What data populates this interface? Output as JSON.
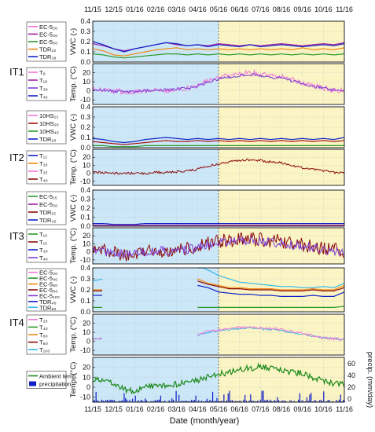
{
  "chart_data": {
    "type": "line",
    "x_ticks": [
      "11/15",
      "12/15",
      "01/16",
      "02/16",
      "03/16",
      "04/16",
      "05/16",
      "06/16",
      "07/16",
      "08/16",
      "09/16",
      "10/16",
      "11/16"
    ],
    "xlabel": "Date (month/year)",
    "shade": {
      "winter_color": "#cce7f7",
      "summer_color": "#fbf4c4",
      "boundary": "05/16"
    },
    "panels": [
      {
        "group": "",
        "ylabel": "VWC (-)",
        "yticks": [
          "0.4",
          "0.3",
          "0.2",
          "0.1",
          "0.0"
        ],
        "ylim": [
          0,
          0.4
        ],
        "legend": [
          {
            "label": "EC-5₂₀",
            "color": "#f078d8"
          },
          {
            "label": "EC-5₃₀",
            "color": "#a020a0"
          },
          {
            "label": "EC-5₅₀",
            "color": "#2a9a2a"
          },
          {
            "label": "TDR₂₂",
            "color": "#f08a10"
          },
          {
            "label": "TDR₃₈",
            "color": "#1020c8"
          }
        ],
        "series": [
          {
            "color": "#f08a10",
            "values": [
              0.13,
              0.11,
              0.07,
              0.06,
              0.08,
              0.1,
              0.12,
              0.13,
              0.14,
              0.12,
              0.13,
              0.12,
              0.13,
              0.12,
              0.13,
              0.12,
              0.13,
              0.12,
              0.13,
              0.12,
              0.14,
              0.12,
              0.13,
              0.12,
              0.14
            ]
          },
          {
            "color": "#2a9a2a",
            "values": [
              0.08,
              0.07,
              0.05,
              0.04,
              0.05,
              0.06,
              0.07,
              0.08,
              0.08,
              0.07,
              0.08,
              0.07,
              0.08,
              0.07,
              0.08,
              0.07,
              0.08,
              0.07,
              0.08,
              0.07,
              0.08,
              0.07,
              0.08,
              0.07,
              0.08
            ]
          },
          {
            "color": "#a020a0",
            "values": [
              0.18,
              0.16,
              0.13,
              0.11,
              0.13,
              0.15,
              0.17,
              0.19,
              0.17,
              0.16,
              0.17,
              0.16,
              0.18,
              0.17,
              0.16,
              0.17,
              0.16,
              0.17,
              0.18,
              0.17,
              0.16,
              0.17,
              0.18,
              0.17,
              0.19
            ]
          },
          {
            "color": "#1020c8",
            "values": [
              0.2,
              0.17,
              0.13,
              0.1,
              0.13,
              0.15,
              0.17,
              0.19,
              0.18,
              0.16,
              0.17,
              0.15,
              0.17,
              0.16,
              0.15,
              0.17,
              0.15,
              0.16,
              0.17,
              0.16,
              0.15,
              0.16,
              0.17,
              0.16,
              0.18
            ]
          }
        ]
      },
      {
        "group": "IT1",
        "ylabel": "Temp. (°C)",
        "yticks": [
          "20",
          "10",
          "0",
          "-10"
        ],
        "ylim": [
          -15,
          30
        ],
        "legend": [
          {
            "label": "T₈",
            "color": "#f078d8"
          },
          {
            "label": "T₁₈",
            "color": "#a020a0"
          },
          {
            "label": "T₃₈",
            "color": "#7b3fd6"
          },
          {
            "label": "T₄₅",
            "color": "#1020c8"
          }
        ],
        "series": [
          {
            "color": "#f078d8",
            "values": [
              1,
              1,
              0,
              -1,
              -1,
              0,
              1,
              1,
              2,
              3,
              6,
              12,
              15,
              17,
              19,
              20,
              19,
              17,
              16,
              12,
              9,
              6,
              3,
              1,
              0
            ],
            "band": 6
          },
          {
            "color": "#7b3fd6",
            "values": [
              1,
              1,
              0,
              -1,
              -1,
              0,
              1,
              1,
              2,
              3,
              5,
              10,
              13,
              15,
              17,
              18,
              17,
              15,
              14,
              11,
              8,
              5,
              3,
              1,
              0
            ],
            "band": 3
          }
        ]
      },
      {
        "group": "",
        "ylabel": "VWC (-)",
        "yticks": [
          "0.4",
          "0.3",
          "0.2",
          "0.1",
          "0.0"
        ],
        "ylim": [
          0,
          0.4
        ],
        "legend": [
          {
            "label": "10HS₁₃",
            "color": "#f078d8"
          },
          {
            "label": "10HS₂₀",
            "color": "#a01010"
          },
          {
            "label": "10HS₄₅",
            "color": "#2a9a2a"
          },
          {
            "label": "TDR₂₀",
            "color": "#1020c8"
          }
        ],
        "series": [
          {
            "color": "#2a9a2a",
            "values": [
              0.02,
              0.02,
              0.01,
              0.01,
              0.01,
              0.02,
              0.02,
              0.02,
              0.02,
              0.02,
              0.02,
              0.02,
              0.02,
              0.02,
              0.02,
              0.02,
              0.02,
              0.02,
              0.02,
              0.02,
              0.02,
              0.02,
              0.02,
              0.02,
              0.02
            ]
          },
          {
            "color": "#a01010",
            "values": [
              0.06,
              0.05,
              0.04,
              0.03,
              0.04,
              0.05,
              0.06,
              0.07,
              0.06,
              0.06,
              0.07,
              0.06,
              0.07,
              0.06,
              0.07,
              0.06,
              0.07,
              0.06,
              0.07,
              0.06,
              0.07,
              0.06,
              0.07,
              0.06,
              0.07
            ]
          },
          {
            "color": "#1020c8",
            "values": [
              0.09,
              0.08,
              0.06,
              0.05,
              0.06,
              0.08,
              0.09,
              0.1,
              0.09,
              0.08,
              0.09,
              0.08,
              0.09,
              0.08,
              0.09,
              0.08,
              0.09,
              0.08,
              0.09,
              0.08,
              0.09,
              0.08,
              0.09,
              0.08,
              0.1
            ]
          }
        ]
      },
      {
        "group": "IT2",
        "ylabel": "Temp. (°C)",
        "yticks": [
          "20",
          "10",
          "0",
          "-10"
        ],
        "ylim": [
          -15,
          30
        ],
        "legend": [
          {
            "label": "T₁₂",
            "color": "#1020c8"
          },
          {
            "label": "T₂₀",
            "color": "#f08a10"
          },
          {
            "label": "T₂₅",
            "color": "#f078d8"
          },
          {
            "label": "T₄₀",
            "color": "#8b0a0a"
          }
        ],
        "series": [
          {
            "color": "#8b0a0a",
            "values": [
              1,
              1,
              0,
              0,
              0,
              0,
              1,
              1,
              2,
              3,
              5,
              9,
              12,
              14,
              16,
              17,
              16,
              14,
              13,
              10,
              7,
              5,
              3,
              1,
              1
            ],
            "band": 3
          }
        ]
      },
      {
        "group": "",
        "ylabel": "VWC (-)",
        "yticks": [
          "0.4",
          "0.3",
          "0.2",
          "0.1",
          "0.0"
        ],
        "ylim": [
          0,
          0.4
        ],
        "legend": [
          {
            "label": "EC-5₁₅",
            "color": "#2a9a2a"
          },
          {
            "label": "EC-5₃₀",
            "color": "#a020a0"
          },
          {
            "label": "TDR₁₅",
            "color": "#8b0a0a"
          },
          {
            "label": "TDR₃₀",
            "color": "#1020c8"
          }
        ],
        "series": [
          {
            "color": "#1020c8",
            "values": [
              0.03,
              0.03,
              0.02,
              0.02,
              0.02,
              0.03,
              0.03,
              0.03,
              0.03,
              0.03,
              0.03,
              0.03,
              0.03,
              0.03,
              0.03,
              0.03,
              0.03,
              0.03,
              0.03,
              0.03,
              0.03,
              0.03,
              0.03,
              0.03,
              0.03
            ]
          },
          {
            "color": "#a020a0",
            "values": [
              0.01,
              0.01,
              0.01,
              0.01,
              0.01,
              0.01,
              0.01,
              0.01,
              0.01,
              0.01,
              0.01,
              0.01,
              0.01,
              0.01,
              0.01,
              0.01,
              0.01,
              0.01,
              0.01,
              0.01,
              0.01,
              0.01,
              0.01,
              0.01,
              0.01
            ]
          }
        ]
      },
      {
        "group": "IT3",
        "ylabel": "Temp. (°C)",
        "yticks": [
          "20",
          "10",
          "0",
          "-10"
        ],
        "ylim": [
          -15,
          30
        ],
        "legend": [
          {
            "label": "T₁₀",
            "color": "#2a9a2a"
          },
          {
            "label": "T₁₅",
            "color": "#8b0a0a"
          },
          {
            "label": "T₃₀",
            "color": "#1020c8"
          },
          {
            "label": "T₄₀",
            "color": "#7b3fd6"
          }
        ],
        "series": [
          {
            "color": "#8b0a0a",
            "values": [
              3,
              2,
              0,
              -3,
              -2,
              0,
              1,
              2,
              2,
              3,
              6,
              10,
              13,
              14,
              15,
              16,
              15,
              14,
              13,
              11,
              9,
              6,
              4,
              2,
              1
            ],
            "band": 18
          },
          {
            "color": "#7b3fd6",
            "values": [
              2,
              1,
              0,
              -2,
              -2,
              0,
              1,
              1,
              2,
              3,
              5,
              9,
              11,
              12,
              13,
              14,
              13,
              12,
              11,
              9,
              8,
              5,
              3,
              1,
              0
            ],
            "band": 12
          }
        ]
      },
      {
        "group": "",
        "ylabel": "VWC (-)",
        "yticks": [
          "0.4",
          "0.3",
          "0.2",
          "0.1",
          "0.0"
        ],
        "ylim": [
          0,
          0.4
        ],
        "legend": [
          {
            "label": "EC-5₂₀",
            "color": "#f078d8"
          },
          {
            "label": "EC-5₄₀",
            "color": "#2a9a2a"
          },
          {
            "label": "EC-5₆₀",
            "color": "#f08a10"
          },
          {
            "label": "EC-5₈₀",
            "color": "#8b0a0a"
          },
          {
            "label": "EC-5₁₀₀",
            "color": "#7b3fd6"
          },
          {
            "label": "TDR₄₀",
            "color": "#1020c8"
          },
          {
            "label": "TDR₉₀",
            "color": "#35b8e8"
          }
        ],
        "series": [
          {
            "color": "#35b8e8",
            "values": [
              0.28,
              0.3,
              null,
              null,
              null,
              null,
              null,
              null,
              null,
              null,
              0.42,
              0.38,
              0.33,
              0.3,
              0.27,
              0.26,
              0.25,
              0.24,
              0.23,
              0.23,
              0.22,
              0.22,
              0.23,
              0.22,
              0.26
            ]
          },
          {
            "color": "#f08a10",
            "values": [
              0.2,
              0.2,
              null,
              null,
              null,
              null,
              null,
              null,
              null,
              null,
              0.3,
              0.26,
              0.24,
              0.22,
              0.22,
              0.21,
              0.21,
              0.21,
              0.2,
              0.2,
              0.2,
              0.21,
              0.2,
              0.2,
              0.24
            ]
          },
          {
            "color": "#8b0a0a",
            "values": [
              0.19,
              0.19,
              null,
              null,
              null,
              null,
              null,
              null,
              null,
              null,
              0.28,
              0.25,
              0.23,
              0.21,
              0.21,
              0.2,
              0.2,
              0.2,
              0.19,
              0.19,
              0.19,
              0.2,
              0.19,
              0.19,
              0.22
            ]
          },
          {
            "color": "#1020c8",
            "values": [
              0.15,
              0.15,
              null,
              null,
              null,
              null,
              null,
              null,
              null,
              null,
              0.24,
              0.22,
              0.18,
              0.17,
              0.16,
              0.16,
              0.15,
              0.15,
              0.14,
              0.14,
              0.14,
              0.15,
              0.14,
              0.14,
              0.18
            ]
          },
          {
            "color": "#2a9a2a",
            "values": [
              0.04,
              0.04,
              null,
              null,
              null,
              null,
              null,
              null,
              null,
              null,
              0.04,
              0.04,
              0.04,
              0.04,
              0.04,
              0.04,
              0.04,
              0.04,
              0.04,
              0.04,
              0.04,
              0.04,
              0.04,
              0.04,
              0.05
            ]
          }
        ]
      },
      {
        "group": "IT4",
        "ylabel": "Temp. (°C)",
        "yticks": [
          "20",
          "10",
          "0",
          "-10"
        ],
        "ylim": [
          -15,
          30
        ],
        "legend": [
          {
            "label": "T₂₀",
            "color": "#f078d8"
          },
          {
            "label": "T₄₀",
            "color": "#2a9a2a"
          },
          {
            "label": "T₆₀",
            "color": "#f08a10"
          },
          {
            "label": "T₈₀",
            "color": "#8b0a0a"
          },
          {
            "label": "T₁₀₀",
            "color": "#35b8e8"
          }
        ],
        "series": [
          {
            "color": "#35b8e8",
            "values": [
              3,
              3,
              null,
              null,
              null,
              null,
              null,
              null,
              null,
              null,
              7,
              10,
              12,
              13,
              14,
              15,
              14,
              13,
              12,
              10,
              8,
              6,
              4,
              3,
              2
            ],
            "band": 2
          },
          {
            "color": "#f078d8",
            "values": [
              3,
              3,
              null,
              null,
              null,
              null,
              null,
              null,
              null,
              null,
              8,
              11,
              13,
              14,
              15,
              16,
              15,
              14,
              13,
              11,
              9,
              6,
              4,
              3,
              2
            ],
            "band": 3
          }
        ]
      },
      {
        "group": "",
        "ylabel": "Temp. (°C)",
        "yticks": [
          "20",
          "10",
          "0",
          "-10"
        ],
        "ylim": [
          -15,
          30
        ],
        "ylabel_right": "precip. (mm/day)",
        "yticks_right": [
          "60",
          "40",
          "20",
          "0"
        ],
        "legend": [
          {
            "label": "Ambient temp.",
            "color": "#1b8a1b",
            "kind": "line"
          },
          {
            "label": "precipitation",
            "color": "#1020c8",
            "kind": "bar"
          }
        ],
        "series": [
          {
            "color": "#1b8a1b",
            "values": [
              8,
              6,
              3,
              -2,
              -4,
              0,
              2,
              1,
              3,
              5,
              7,
              10,
              13,
              15,
              18,
              19,
              21,
              19,
              17,
              15,
              14,
              10,
              7,
              4,
              3
            ],
            "jitter": 6
          }
        ]
      }
    ]
  }
}
